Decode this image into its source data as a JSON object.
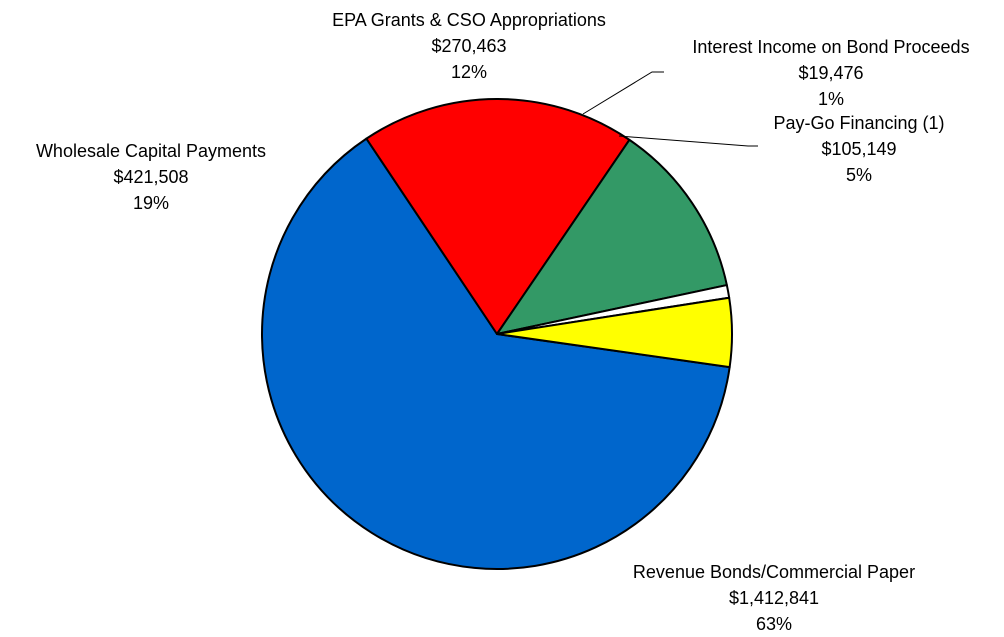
{
  "chart_data": {
    "type": "pie",
    "title": "",
    "slices": [
      {
        "label": "Revenue Bonds/Commercial Paper",
        "value": 1412841,
        "value_text": "$1,412,841",
        "percent_text": "63%",
        "color": "#0066CC"
      },
      {
        "label": "Wholesale Capital Payments",
        "value": 421508,
        "value_text": "$421,508",
        "percent_text": "19%",
        "color": "#FF0000"
      },
      {
        "label": "EPA Grants & CSO Appropriations",
        "value": 270463,
        "value_text": "$270,463",
        "percent_text": "12%",
        "color": "#339966"
      },
      {
        "label": "Interest Income on Bond Proceeds",
        "value": 19476,
        "value_text": "$19,476",
        "percent_text": "1%",
        "color": "#FFFFFF"
      },
      {
        "label": "Pay-Go Financing (1)",
        "value": 105149,
        "value_text": "$105,149",
        "percent_text": "5%",
        "color": "#FFFF00"
      }
    ],
    "legend": "none",
    "slice_outline_color": "#000000"
  }
}
